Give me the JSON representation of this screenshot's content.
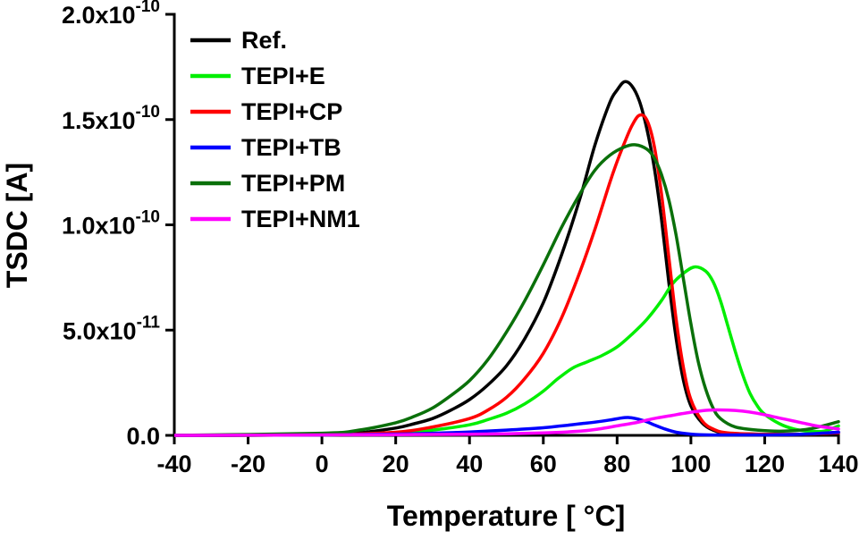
{
  "chart_data": {
    "type": "line",
    "title": "",
    "xlabel": "Temperature [ °C]",
    "ylabel": "TSDC [A]",
    "xlim": [
      -40,
      140
    ],
    "ylim": [
      0,
      20
    ],
    "y_value_scale": "1e-11 A",
    "grid": false,
    "legend_position": "top-left-inside",
    "x_ticks": [
      -40,
      -20,
      0,
      20,
      40,
      60,
      80,
      100,
      120,
      140
    ],
    "y_ticks": [
      {
        "v": 0,
        "label": "0.0"
      },
      {
        "v": 5,
        "label": "5.0x10^-11"
      },
      {
        "v": 10,
        "label": "1.0x10^-10"
      },
      {
        "v": 15,
        "label": "1.5x10^-10"
      },
      {
        "v": 20,
        "label": "2.0x10^-10"
      }
    ],
    "series": [
      {
        "name": "Ref.",
        "color": "#000000",
        "points": [
          [
            -40,
            0
          ],
          [
            -20,
            0
          ],
          [
            0,
            0.05
          ],
          [
            10,
            0.12
          ],
          [
            20,
            0.35
          ],
          [
            25,
            0.55
          ],
          [
            30,
            0.8
          ],
          [
            35,
            1.2
          ],
          [
            40,
            1.7
          ],
          [
            45,
            2.4
          ],
          [
            50,
            3.3
          ],
          [
            55,
            4.6
          ],
          [
            60,
            6.3
          ],
          [
            65,
            8.6
          ],
          [
            70,
            11.3
          ],
          [
            74,
            13.8
          ],
          [
            78,
            15.8
          ],
          [
            80,
            16.4
          ],
          [
            82,
            16.8
          ],
          [
            84,
            16.6
          ],
          [
            86,
            15.9
          ],
          [
            88,
            14.6
          ],
          [
            90,
            12.8
          ],
          [
            92,
            10.3
          ],
          [
            94,
            7.3
          ],
          [
            96,
            4.6
          ],
          [
            98,
            2.6
          ],
          [
            100,
            1.4
          ],
          [
            103,
            0.6
          ],
          [
            106,
            0.25
          ],
          [
            110,
            0.1
          ],
          [
            120,
            0.05
          ],
          [
            130,
            0.05
          ],
          [
            140,
            0.15
          ]
        ]
      },
      {
        "name": "TEPI+E",
        "color": "#00ee00",
        "points": [
          [
            -40,
            0
          ],
          [
            0,
            0.02
          ],
          [
            20,
            0.1
          ],
          [
            30,
            0.25
          ],
          [
            40,
            0.5
          ],
          [
            45,
            0.75
          ],
          [
            50,
            1.05
          ],
          [
            55,
            1.5
          ],
          [
            60,
            2.1
          ],
          [
            64,
            2.7
          ],
          [
            68,
            3.2
          ],
          [
            72,
            3.5
          ],
          [
            76,
            3.8
          ],
          [
            80,
            4.2
          ],
          [
            84,
            4.8
          ],
          [
            88,
            5.5
          ],
          [
            92,
            6.4
          ],
          [
            95,
            7.2
          ],
          [
            98,
            7.7
          ],
          [
            101,
            8.0
          ],
          [
            104,
            7.8
          ],
          [
            106,
            7.3
          ],
          [
            108,
            6.4
          ],
          [
            110,
            5.2
          ],
          [
            112,
            4.0
          ],
          [
            114,
            2.9
          ],
          [
            116,
            2.0
          ],
          [
            118,
            1.4
          ],
          [
            120,
            1.0
          ],
          [
            124,
            0.55
          ],
          [
            128,
            0.3
          ],
          [
            132,
            0.2
          ],
          [
            136,
            0.2
          ],
          [
            140,
            0.45
          ]
        ]
      },
      {
        "name": "TEPI+CP",
        "color": "#ff0000",
        "points": [
          [
            -40,
            0
          ],
          [
            0,
            0.03
          ],
          [
            20,
            0.15
          ],
          [
            30,
            0.4
          ],
          [
            40,
            0.8
          ],
          [
            45,
            1.2
          ],
          [
            50,
            1.8
          ],
          [
            55,
            2.7
          ],
          [
            60,
            3.9
          ],
          [
            65,
            5.6
          ],
          [
            70,
            7.8
          ],
          [
            74,
            9.8
          ],
          [
            78,
            12.0
          ],
          [
            80,
            13.0
          ],
          [
            82,
            13.9
          ],
          [
            84,
            14.7
          ],
          [
            86,
            15.2
          ],
          [
            88,
            15.0
          ],
          [
            90,
            13.8
          ],
          [
            92,
            11.5
          ],
          [
            94,
            8.5
          ],
          [
            96,
            5.5
          ],
          [
            98,
            3.2
          ],
          [
            100,
            1.7
          ],
          [
            103,
            0.7
          ],
          [
            106,
            0.3
          ],
          [
            110,
            0.12
          ],
          [
            120,
            0.05
          ],
          [
            130,
            0.05
          ],
          [
            140,
            0.12
          ]
        ]
      },
      {
        "name": "TEPI+TB",
        "color": "#0000ff",
        "points": [
          [
            -40,
            0
          ],
          [
            0,
            0.02
          ],
          [
            20,
            0.06
          ],
          [
            30,
            0.1
          ],
          [
            40,
            0.16
          ],
          [
            50,
            0.25
          ],
          [
            55,
            0.3
          ],
          [
            60,
            0.36
          ],
          [
            65,
            0.45
          ],
          [
            70,
            0.55
          ],
          [
            74,
            0.63
          ],
          [
            78,
            0.73
          ],
          [
            81,
            0.82
          ],
          [
            83,
            0.85
          ],
          [
            85,
            0.8
          ],
          [
            88,
            0.65
          ],
          [
            90,
            0.5
          ],
          [
            93,
            0.3
          ],
          [
            96,
            0.15
          ],
          [
            100,
            0.06
          ],
          [
            105,
            0.02
          ],
          [
            110,
            0.02
          ],
          [
            120,
            0.02
          ],
          [
            130,
            0.05
          ],
          [
            140,
            0.15
          ]
        ]
      },
      {
        "name": "TEPI+PM",
        "color": "#0a700a",
        "points": [
          [
            -40,
            0
          ],
          [
            0,
            0.1
          ],
          [
            10,
            0.25
          ],
          [
            20,
            0.6
          ],
          [
            25,
            0.9
          ],
          [
            30,
            1.3
          ],
          [
            35,
            1.9
          ],
          [
            40,
            2.6
          ],
          [
            45,
            3.6
          ],
          [
            50,
            4.9
          ],
          [
            55,
            6.4
          ],
          [
            60,
            8.1
          ],
          [
            65,
            9.9
          ],
          [
            70,
            11.5
          ],
          [
            74,
            12.6
          ],
          [
            78,
            13.3
          ],
          [
            82,
            13.7
          ],
          [
            85,
            13.8
          ],
          [
            88,
            13.6
          ],
          [
            90,
            13.2
          ],
          [
            92,
            12.4
          ],
          [
            94,
            11.2
          ],
          [
            96,
            9.5
          ],
          [
            98,
            7.4
          ],
          [
            100,
            5.3
          ],
          [
            102,
            3.5
          ],
          [
            104,
            2.2
          ],
          [
            106,
            1.3
          ],
          [
            108,
            0.8
          ],
          [
            112,
            0.4
          ],
          [
            118,
            0.25
          ],
          [
            125,
            0.2
          ],
          [
            132,
            0.3
          ],
          [
            140,
            0.65
          ]
        ]
      },
      {
        "name": "TEPI+NM1",
        "color": "#ff00ff",
        "points": [
          [
            -40,
            0
          ],
          [
            0,
            0.02
          ],
          [
            40,
            0.05
          ],
          [
            60,
            0.12
          ],
          [
            70,
            0.2
          ],
          [
            75,
            0.3
          ],
          [
            80,
            0.45
          ],
          [
            85,
            0.6
          ],
          [
            90,
            0.8
          ],
          [
            95,
            0.95
          ],
          [
            100,
            1.1
          ],
          [
            105,
            1.2
          ],
          [
            110,
            1.2
          ],
          [
            114,
            1.15
          ],
          [
            118,
            1.05
          ],
          [
            122,
            0.9
          ],
          [
            126,
            0.75
          ],
          [
            130,
            0.6
          ],
          [
            134,
            0.45
          ],
          [
            140,
            0.3
          ]
        ]
      }
    ]
  }
}
